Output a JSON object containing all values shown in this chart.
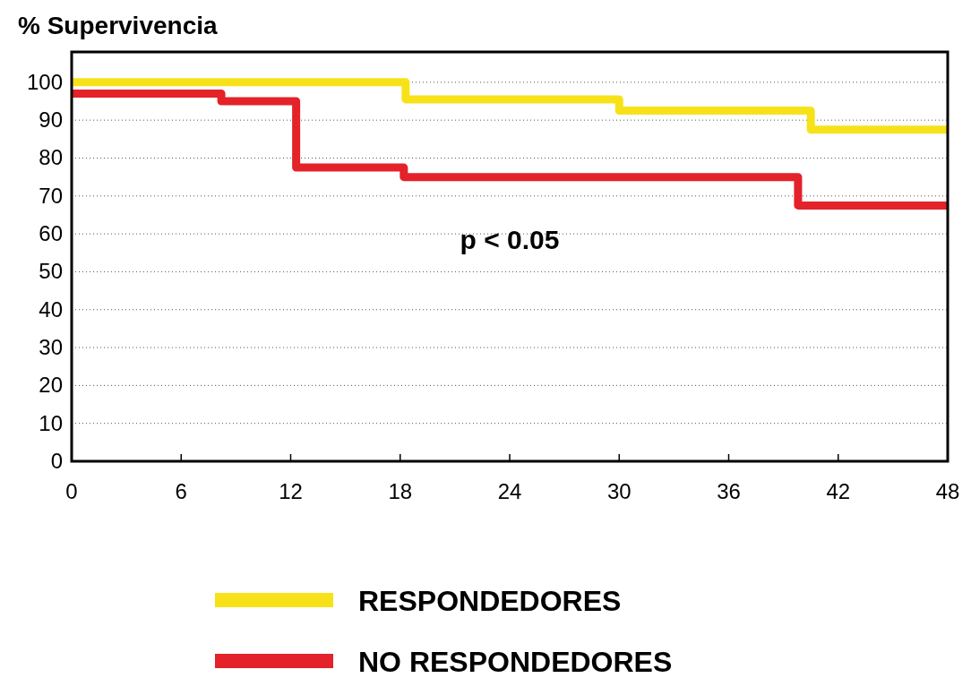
{
  "chart_data": {
    "type": "step",
    "title": "% Supervivencia",
    "annotations": [
      "p < 0.05"
    ],
    "xlim": [
      0,
      48
    ],
    "xticks": [
      0,
      6,
      12,
      18,
      24,
      30,
      36,
      42,
      48
    ],
    "ylim": [
      0,
      108
    ],
    "yticks": [
      0,
      10,
      20,
      30,
      40,
      50,
      60,
      70,
      80,
      90,
      100
    ],
    "grid": "y",
    "legend": "bottom",
    "line_style": "solid",
    "series": [
      {
        "name": "RESPONDEDORES",
        "color": "#f7e21a",
        "x": [
          0,
          18.3,
          30,
          40.5,
          48
        ],
        "values": [
          100,
          95.5,
          92.5,
          87.5,
          87.5
        ]
      },
      {
        "name": "NO RESPONDEDORES",
        "color": "#e3222a",
        "x": [
          0,
          8.2,
          12.3,
          18.2,
          39.8,
          48
        ],
        "values": [
          97,
          95,
          77.5,
          75,
          67.5,
          67.5
        ]
      }
    ]
  }
}
